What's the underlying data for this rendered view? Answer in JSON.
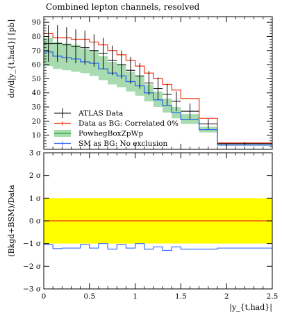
{
  "chart_data": [
    {
      "type": "line",
      "title": "Combined lepton channels, resolved",
      "ylabel": "dσ/d|y_{t,had}| [pb]",
      "xlabel": "",
      "ylim": [
        0,
        94
      ],
      "xlim": [
        0,
        2.5
      ],
      "y_ticks": [
        "10",
        "20",
        "30",
        "40",
        "50",
        "60",
        "70",
        "80",
        "90"
      ],
      "grid": false,
      "legend_position": "bottom-left",
      "bin_edges": [
        0,
        0.1,
        0.2,
        0.3,
        0.4,
        0.5,
        0.6,
        0.7,
        0.8,
        0.9,
        1.0,
        1.1,
        1.2,
        1.3,
        1.4,
        1.5,
        1.7,
        1.9,
        2.5
      ],
      "series": [
        {
          "name": "ATLAS Data",
          "type": "points-with-errors",
          "color": "#000000",
          "values": [
            75,
            75,
            74,
            73,
            72,
            70,
            68,
            63,
            60,
            56,
            52,
            47,
            43,
            39,
            34,
            27,
            18,
            4
          ],
          "errors": [
            13,
            13,
            12.5,
            12,
            12,
            11.5,
            11,
            10.5,
            10,
            9.5,
            9,
            8.5,
            8,
            7.5,
            7,
            5.5,
            3.5,
            1
          ]
        },
        {
          "name": "Data as BG: Correlated 0%",
          "type": "step",
          "color": "#ee3311",
          "values": [
            82,
            79,
            79,
            78,
            78,
            76,
            74,
            70,
            67,
            63,
            59,
            54,
            50,
            46,
            42,
            36,
            22,
            4.5
          ]
        },
        {
          "name": "PowhegBoxZpWp",
          "type": "step-band",
          "color": "#22aa22",
          "band_color": "#a8dbb0",
          "values": [
            69,
            66,
            65,
            64,
            62,
            61,
            57,
            54,
            52,
            48,
            45,
            40,
            35,
            31,
            26,
            21,
            14,
            3
          ],
          "band_low": [
            59,
            57,
            56,
            55,
            54,
            52,
            49,
            46,
            44,
            41,
            38,
            34,
            30,
            26,
            22,
            18,
            12,
            2.6
          ],
          "band_high": [
            79,
            76,
            75,
            74,
            71,
            70,
            66,
            62,
            60,
            55,
            52,
            46,
            41,
            36,
            30,
            25,
            16,
            3.5
          ]
        },
        {
          "name": "SM as BG: No exclusion",
          "type": "step",
          "color": "#3366ff",
          "values": [
            69,
            66,
            65,
            64,
            62,
            61,
            57,
            54,
            52,
            48,
            45,
            40,
            35,
            31,
            26,
            21,
            14,
            3
          ]
        }
      ]
    },
    {
      "type": "line",
      "xlabel": "|y_{t,had}|",
      "ylabel": "(Bkgd+BSM)/Data",
      "ylim": [
        -3,
        3
      ],
      "xlim": [
        0,
        2.5
      ],
      "x_ticks": [
        "0",
        "0.5",
        "1",
        "1.5",
        "2",
        "2.5"
      ],
      "y_ticks": [
        "−3 σ",
        "−2 σ",
        "−1 σ",
        "0 σ",
        "1 σ",
        "2 σ",
        "3 σ"
      ],
      "grid": false,
      "bin_edges": [
        0,
        0.1,
        0.2,
        0.3,
        0.4,
        0.5,
        0.6,
        0.7,
        0.8,
        0.9,
        1.0,
        1.1,
        1.2,
        1.3,
        1.4,
        1.5,
        1.7,
        1.9,
        2.5
      ],
      "band": {
        "low": -1,
        "high": 1,
        "color": "#ffff00"
      },
      "series": [
        {
          "name": "Data as BG: Correlated 0%",
          "type": "step",
          "color": "#ee3311",
          "values": [
            0,
            0,
            0,
            0,
            0,
            0,
            0,
            0,
            0,
            0,
            0,
            0,
            0,
            0,
            0,
            0,
            0,
            0
          ]
        },
        {
          "name": "SM as BG: No exclusion",
          "type": "step",
          "color": "#3366ff",
          "values": [
            -1.05,
            -1.22,
            -1.2,
            -1.2,
            -1.05,
            -1.2,
            -1.0,
            -1.25,
            -1.05,
            -1.2,
            -1.0,
            -1.25,
            -1.15,
            -1.3,
            -1.15,
            -1.25,
            -1.25,
            -1.2
          ]
        }
      ]
    }
  ]
}
